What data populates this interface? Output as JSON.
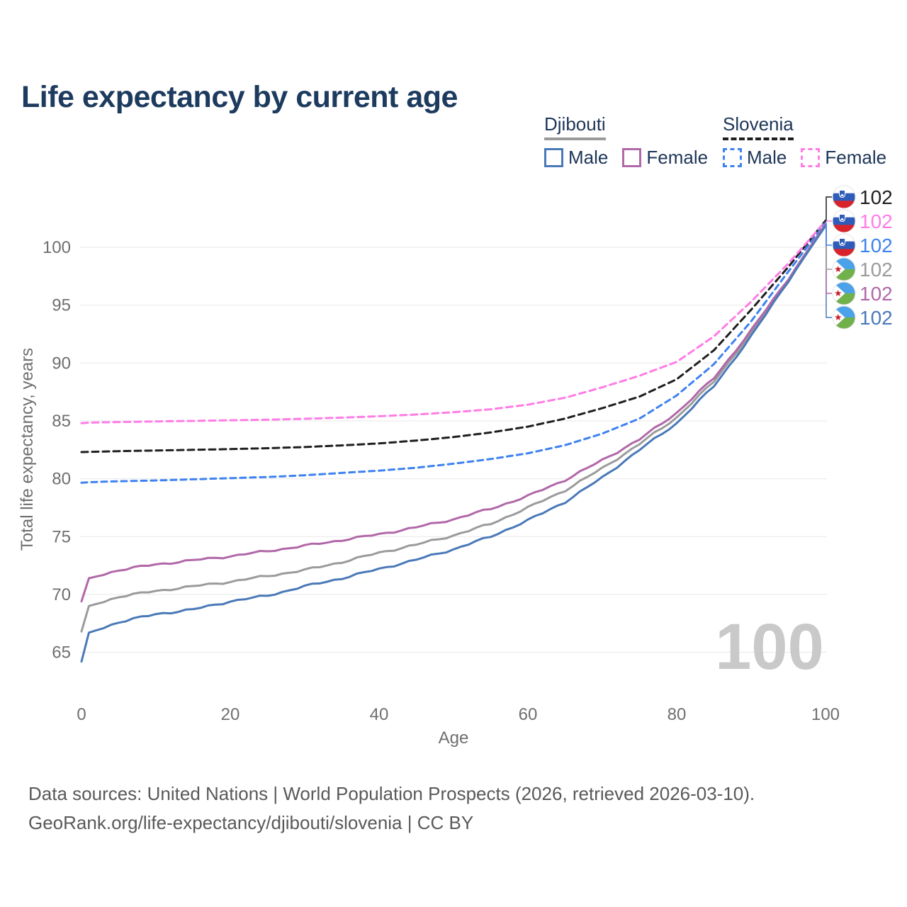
{
  "title": "Life expectancy by current age",
  "title_color": "#1d3b5e",
  "legend": {
    "text_color": "#1d3557",
    "groups": [
      {
        "id": "djibouti",
        "name": "Djibouti",
        "line_style": "solid",
        "underline_color": "#9b9b9b",
        "items": [
          {
            "id": "djibouti-male",
            "label": "Male",
            "color": "#4a79b8"
          },
          {
            "id": "djibouti-female",
            "label": "Female",
            "color": "#b168a8"
          }
        ]
      },
      {
        "id": "slovenia",
        "name": "Slovenia",
        "line_style": "dashed",
        "underline_color": "#1f1f1f",
        "items": [
          {
            "id": "slovenia-male",
            "label": "Male",
            "color": "#3e82f0"
          },
          {
            "id": "slovenia-female",
            "label": "Female",
            "color": "#ff7ce6"
          }
        ]
      }
    ]
  },
  "chart_data": {
    "type": "line",
    "title": "Life expectancy by current age",
    "xlabel": "Age",
    "ylabel": "Total life expectancy, years",
    "xlim": [
      0,
      100
    ],
    "ylim": [
      63.5,
      103
    ],
    "xticks": [
      0,
      20,
      40,
      60,
      80,
      100
    ],
    "yticks": [
      65,
      70,
      75,
      80,
      85,
      90,
      95,
      100
    ],
    "grid": true,
    "grid_color": "#e8e8e8",
    "axis_text_color": "#6f6f6f",
    "legend_position": "top-right",
    "x": [
      0,
      1,
      5,
      10,
      15,
      20,
      25,
      30,
      35,
      40,
      45,
      50,
      55,
      60,
      65,
      70,
      75,
      80,
      85,
      90,
      95,
      100
    ],
    "series": [
      {
        "id": "slovenia-total",
        "name": "Slovenia Total",
        "country": "Slovenia",
        "sex": "Both",
        "color": "#1f1f1f",
        "dash": "9 6",
        "values": [
          82.3,
          82.32,
          82.38,
          82.44,
          82.5,
          82.56,
          82.64,
          82.74,
          82.88,
          83.05,
          83.3,
          83.6,
          84.0,
          84.5,
          85.2,
          86.1,
          87.1,
          88.6,
          91.1,
          94.6,
          98.3,
          102.3
        ],
        "end_label": "102"
      },
      {
        "id": "slovenia-female",
        "name": "Slovenia Female",
        "country": "Slovenia",
        "sex": "Female",
        "color": "#ff7ce6",
        "dash": "9 6",
        "values": [
          84.8,
          84.85,
          84.9,
          84.95,
          85.0,
          85.05,
          85.1,
          85.18,
          85.28,
          85.4,
          85.55,
          85.75,
          86.0,
          86.4,
          87.0,
          87.9,
          88.9,
          90.1,
          92.3,
          95.3,
          98.6,
          102.25
        ],
        "end_label": "102"
      },
      {
        "id": "slovenia-male",
        "name": "Slovenia Male",
        "country": "Slovenia",
        "sex": "Male",
        "color": "#3e82f0",
        "dash": "8 6",
        "values": [
          79.65,
          79.7,
          79.78,
          79.85,
          79.95,
          80.05,
          80.15,
          80.3,
          80.5,
          80.7,
          80.95,
          81.3,
          81.7,
          82.2,
          82.9,
          83.9,
          85.2,
          87.2,
          89.9,
          93.6,
          97.9,
          102.1
        ],
        "end_label": "102"
      },
      {
        "id": "djibouti-total",
        "name": "Djibouti Total",
        "country": "Djibouti",
        "sex": "Both",
        "color": "#9b9b9b",
        "dash": null,
        "values": [
          66.8,
          69.0,
          69.8,
          70.3,
          70.7,
          71.1,
          71.6,
          72.1,
          72.8,
          73.6,
          74.3,
          75.1,
          76.1,
          77.5,
          79.0,
          80.9,
          83.0,
          85.3,
          88.4,
          92.6,
          97.25,
          102.0
        ],
        "end_label": "102"
      },
      {
        "id": "djibouti-female",
        "name": "Djibouti Female",
        "country": "Djibouti",
        "sex": "Female",
        "color": "#b168a8",
        "dash": null,
        "values": [
          69.4,
          71.4,
          72.1,
          72.6,
          72.95,
          73.3,
          73.75,
          74.2,
          74.7,
          75.2,
          75.8,
          76.5,
          77.4,
          78.5,
          79.9,
          81.6,
          83.4,
          85.7,
          88.7,
          92.8,
          97.3,
          101.95
        ],
        "end_label": "102"
      },
      {
        "id": "djibouti-male",
        "name": "Djibouti Male",
        "country": "Djibouti",
        "sex": "Male",
        "color": "#4a79b8",
        "dash": null,
        "values": [
          64.2,
          66.7,
          67.6,
          68.3,
          68.7,
          69.4,
          69.9,
          70.7,
          71.4,
          72.2,
          73.0,
          73.9,
          75.0,
          76.4,
          78.0,
          80.1,
          82.5,
          84.8,
          88.0,
          92.3,
          97.1,
          101.85
        ],
        "end_label": "102"
      }
    ],
    "end_label_rows": [
      {
        "series": "slovenia-total",
        "flag": "slovenia",
        "value": "102",
        "color": "#1f1f1f"
      },
      {
        "series": "slovenia-female",
        "flag": "slovenia",
        "value": "102",
        "color": "#ff7ce6"
      },
      {
        "series": "slovenia-male",
        "flag": "slovenia",
        "value": "102",
        "color": "#3e82f0"
      },
      {
        "series": "djibouti-total",
        "flag": "djibouti",
        "value": "102",
        "color": "#9b9b9b"
      },
      {
        "series": "djibouti-female",
        "flag": "djibouti",
        "value": "102",
        "color": "#b168a8"
      },
      {
        "series": "djibouti-male",
        "flag": "djibouti",
        "value": "102",
        "color": "#4a79b8"
      }
    ],
    "flag_colors": {
      "slovenia": {
        "white": "#ffffff",
        "blue": "#2e5cb8",
        "red": "#d9232a"
      },
      "djibouti": {
        "blue": "#4ba2e9",
        "green": "#70b14b",
        "white": "#ffffff",
        "star_red": "#cc2030"
      }
    },
    "watermark": {
      "text": "100",
      "color": "#c9c9c9"
    }
  },
  "footer": {
    "line1": "Data sources: United Nations | World Population Prospects (2026, retrieved 2026-03-10).",
    "line2": "GeoRank.org/life-expectancy/djibouti/slovenia | CC BY"
  }
}
